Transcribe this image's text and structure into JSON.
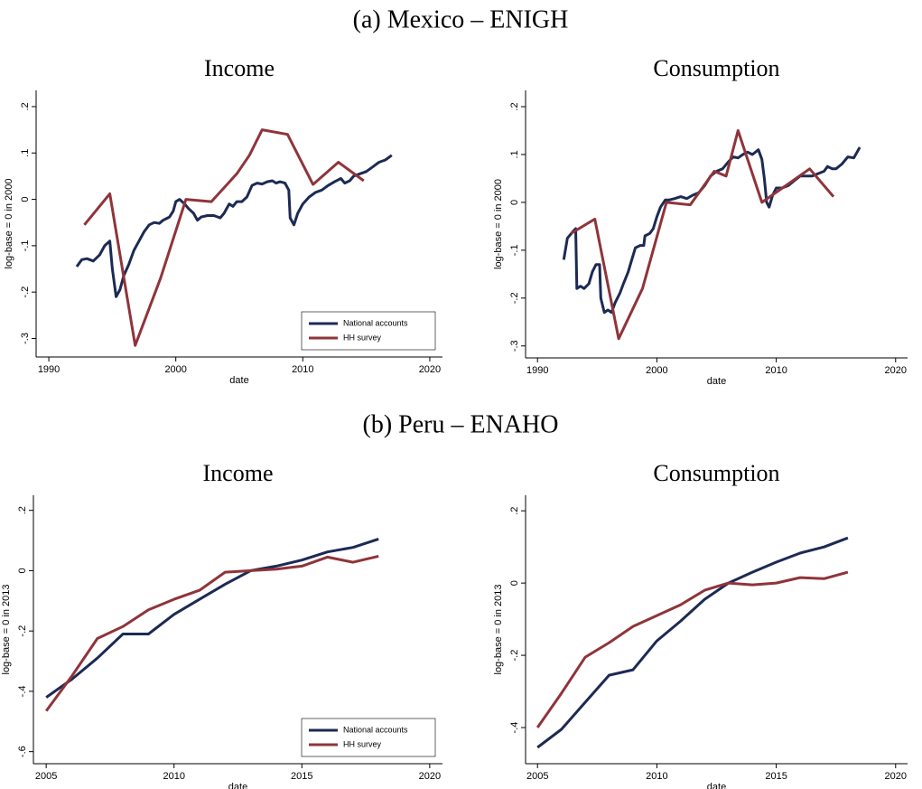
{
  "panel_titles": [
    "(a) Mexico – ENIGH",
    "(b) Peru – ENAHO"
  ],
  "chart_data": [
    {
      "type": "line",
      "title": "Income",
      "x_label": "date",
      "y_label": "log-base = 0 in 2000",
      "grid": false,
      "legend": "lower right",
      "xlim": [
        1989,
        2021
      ],
      "ylim": [
        -0.34,
        0.235
      ],
      "xticks": [
        1990,
        2000,
        2010,
        2020
      ],
      "yticks": [
        {
          "value": -0.3,
          "label": "-.3"
        },
        {
          "value": -0.2,
          "label": "-.2"
        },
        {
          "value": -0.1,
          "label": "-.1"
        },
        0,
        {
          "value": 0.1,
          "label": ".1"
        },
        {
          "value": 0.2,
          "label": ".2"
        }
      ],
      "series": [
        {
          "name": "National accounts",
          "color": "#1c2a54",
          "x": [
            1992.2,
            1992.6,
            1993,
            1993.5,
            1994,
            1994.4,
            1994.8,
            1995,
            1995.3,
            1995.6,
            1995.9,
            1996.3,
            1996.7,
            1997,
            1997.5,
            1997.9,
            1998.3,
            1998.7,
            1999,
            1999.5,
            1999.8,
            2000,
            2000.3,
            2000.7,
            2001,
            2001.4,
            2001.7,
            2002,
            2002.5,
            2003,
            2003.5,
            2003.8,
            2004.2,
            2004.5,
            2004.8,
            2005.2,
            2005.6,
            2006,
            2006.4,
            2006.8,
            2007.2,
            2007.6,
            2007.9,
            2008.2,
            2008.6,
            2008.9,
            2009,
            2009.3,
            2009.6,
            2010,
            2010.5,
            2011,
            2011.5,
            2012,
            2012.5,
            2013,
            2013.3,
            2013.7,
            2014,
            2014.5,
            2015,
            2015.5,
            2016,
            2016.5,
            2017
          ],
          "values": [
            -0.145,
            -0.13,
            -0.128,
            -0.133,
            -0.12,
            -0.1,
            -0.09,
            -0.15,
            -0.21,
            -0.195,
            -0.165,
            -0.14,
            -0.11,
            -0.095,
            -0.07,
            -0.055,
            -0.05,
            -0.052,
            -0.045,
            -0.038,
            -0.025,
            -0.005,
            0,
            -0.01,
            -0.02,
            -0.03,
            -0.045,
            -0.038,
            -0.035,
            -0.035,
            -0.04,
            -0.03,
            -0.01,
            -0.015,
            -0.005,
            -0.005,
            0.005,
            0.03,
            0.035,
            0.033,
            0.038,
            0.04,
            0.035,
            0.038,
            0.035,
            0.02,
            -0.04,
            -0.055,
            -0.03,
            -0.01,
            0.005,
            0.015,
            0.02,
            0.03,
            0.038,
            0.045,
            0.035,
            0.04,
            0.05,
            0.055,
            0.06,
            0.07,
            0.08,
            0.085,
            0.095
          ]
        },
        {
          "name": "HH survey",
          "color": "#8f343a",
          "x": [
            1992.8,
            1994.8,
            1996.8,
            1998.8,
            2000.8,
            2002.8,
            2004.8,
            2005.8,
            2006.8,
            2008.8,
            2010.8,
            2012.8,
            2014.8
          ],
          "values": [
            -0.055,
            0.012,
            -0.315,
            -0.17,
            0,
            -0.005,
            0.055,
            0.095,
            0.15,
            0.14,
            0.032,
            0.08,
            0.04
          ]
        }
      ]
    },
    {
      "type": "line",
      "title": "Consumption",
      "x_label": "date",
      "y_label": "log-base = 0 in 2000",
      "grid": false,
      "xlim": [
        1989,
        2021
      ],
      "ylim": [
        -0.325,
        0.234
      ],
      "xticks": [
        1990,
        2000,
        2010,
        2020
      ],
      "yticks": [
        {
          "value": -0.3,
          "label": "-.3"
        },
        {
          "value": -0.2,
          "label": "-.2"
        },
        {
          "value": -0.1,
          "label": "-.1"
        },
        0,
        {
          "value": 0.1,
          "label": ".1"
        },
        {
          "value": 0.2,
          "label": ".2"
        }
      ],
      "series": [
        {
          "color": "#1c2a54",
          "x": [
            1992.2,
            1992.5,
            1993,
            1993.2,
            1993.3,
            1993.6,
            1993.9,
            1994.3,
            1994.6,
            1994.9,
            1995.2,
            1995.3,
            1995.6,
            1995.9,
            1996.2,
            1996.5,
            1996.9,
            1997.2,
            1997.6,
            1997.9,
            1998.2,
            1998.6,
            1998.9,
            1999,
            1999.4,
            1999.7,
            2000,
            2000.3,
            2000.7,
            2001,
            2001.5,
            2002,
            2002.5,
            2003,
            2003.5,
            2004,
            2004.5,
            2005,
            2005.5,
            2006,
            2006.4,
            2006.8,
            2007.2,
            2007.6,
            2008,
            2008.5,
            2008.8,
            2009,
            2009.2,
            2009.4,
            2009.7,
            2010,
            2010.5,
            2011,
            2011.5,
            2012,
            2012.5,
            2013,
            2013.5,
            2014,
            2014.3,
            2014.7,
            2015,
            2015.5,
            2016,
            2016.5,
            2017
          ],
          "values": [
            -0.12,
            -0.075,
            -0.06,
            -0.055,
            -0.18,
            -0.175,
            -0.18,
            -0.17,
            -0.145,
            -0.13,
            -0.13,
            -0.2,
            -0.23,
            -0.225,
            -0.23,
            -0.21,
            -0.19,
            -0.17,
            -0.145,
            -0.12,
            -0.095,
            -0.09,
            -0.09,
            -0.07,
            -0.065,
            -0.055,
            -0.03,
            -0.01,
            0.005,
            0.005,
            0.008,
            0.012,
            0.008,
            0.015,
            0.02,
            0.035,
            0.055,
            0.065,
            0.07,
            0.085,
            0.095,
            0.093,
            0.1,
            0.105,
            0.1,
            0.11,
            0.09,
            0.05,
            0,
            -0.01,
            0.015,
            0.03,
            0.03,
            0.035,
            0.045,
            0.055,
            0.055,
            0.055,
            0.06,
            0.065,
            0.075,
            0.07,
            0.07,
            0.08,
            0.095,
            0.093,
            0.115
          ]
        },
        {
          "color": "#8f343a",
          "x": [
            1992.8,
            1994.8,
            1996.8,
            1998.8,
            2000.8,
            2002.8,
            2004.8,
            2005.8,
            2006.8,
            2008.8,
            2010.8,
            2012.8,
            2014.8
          ],
          "values": [
            -0.065,
            -0.035,
            -0.285,
            -0.18,
            0,
            -0.005,
            0.065,
            0.055,
            0.15,
            0,
            0.035,
            0.07,
            0.012
          ]
        }
      ]
    },
    {
      "type": "line",
      "title": "Income",
      "x_label": "date",
      "y_label": "log-base = 0 in 2013",
      "grid": false,
      "legend": "lower right",
      "xlim": [
        2004.5,
        2020.5
      ],
      "ylim": [
        -0.64,
        0.25
      ],
      "xticks": [
        2005,
        2010,
        2015,
        2020
      ],
      "yticks": [
        {
          "value": -0.6,
          "label": "-.6"
        },
        {
          "value": -0.4,
          "label": "-.4"
        },
        {
          "value": -0.2,
          "label": "-.2"
        },
        0,
        {
          "value": 0.2,
          "label": ".2"
        }
      ],
      "series": [
        {
          "name": "National accounts",
          "color": "#1c2a54",
          "x": [
            2005,
            2006,
            2007,
            2008,
            2009,
            2010,
            2011,
            2012,
            2013,
            2014,
            2015,
            2016,
            2017,
            2018
          ],
          "values": [
            -0.42,
            -0.36,
            -0.29,
            -0.21,
            -0.21,
            -0.145,
            -0.095,
            -0.045,
            0,
            0.015,
            0.035,
            0.062,
            0.077,
            0.105
          ]
        },
        {
          "name": "HH survey",
          "color": "#8f343a",
          "x": [
            2005,
            2006,
            2007,
            2008,
            2009,
            2010,
            2011,
            2012,
            2013,
            2014,
            2015,
            2016,
            2017,
            2018
          ],
          "values": [
            -0.465,
            -0.35,
            -0.225,
            -0.185,
            -0.13,
            -0.095,
            -0.065,
            -0.005,
            0,
            0.005,
            0.015,
            0.045,
            0.028,
            0.048
          ]
        }
      ]
    },
    {
      "type": "line",
      "title": "Consumption",
      "x_label": "date",
      "y_label": "log-base = 0 in 2013",
      "grid": false,
      "xlim": [
        2004.5,
        2020.5
      ],
      "ylim": [
        -0.5,
        0.243
      ],
      "xticks": [
        2005,
        2010,
        2015,
        2020
      ],
      "yticks": [
        {
          "value": -0.4,
          "label": "-.4"
        },
        {
          "value": -0.2,
          "label": "-.2"
        },
        0,
        {
          "value": 0.2,
          "label": ".2"
        }
      ],
      "series": [
        {
          "color": "#1c2a54",
          "x": [
            2005,
            2006,
            2007,
            2008,
            2009,
            2010,
            2011,
            2012,
            2013,
            2014,
            2015,
            2016,
            2017,
            2018
          ],
          "values": [
            -0.455,
            -0.405,
            -0.33,
            -0.255,
            -0.24,
            -0.16,
            -0.105,
            -0.045,
            0,
            0.03,
            0.058,
            0.083,
            0.1,
            0.125
          ]
        },
        {
          "color": "#8f343a",
          "x": [
            2005,
            2006,
            2007,
            2008,
            2009,
            2010,
            2011,
            2012,
            2013,
            2014,
            2015,
            2016,
            2017,
            2018
          ],
          "values": [
            -0.4,
            -0.305,
            -0.205,
            -0.165,
            -0.12,
            -0.09,
            -0.06,
            -0.02,
            0,
            -0.005,
            0,
            0.015,
            0.012,
            0.03
          ]
        }
      ]
    }
  ]
}
